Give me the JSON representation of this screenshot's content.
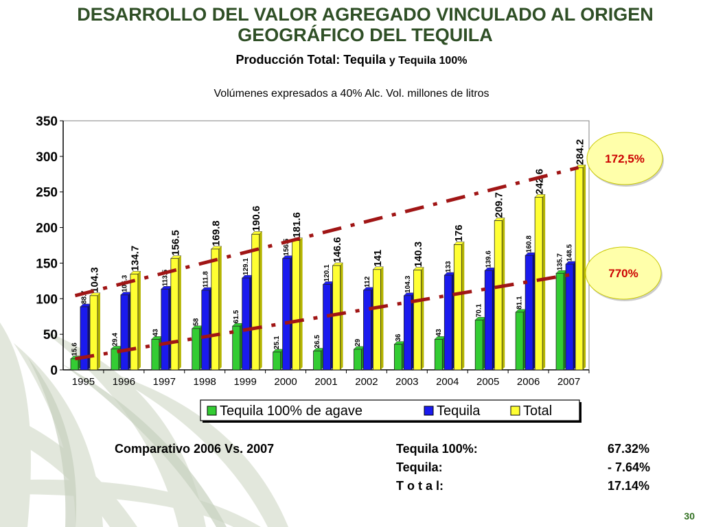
{
  "title": "DESARROLLO DEL VALOR AGREGADO VINCULADO AL ORIGEN GEOGRÁFICO DEL TEQUILA",
  "subtitle_main": "Producción Total: Tequila",
  "subtitle_small": "y Tequila 100%",
  "units_note": "Volúmenes expresados a 40% Alc. Vol. millones de litros",
  "chart_data": {
    "type": "bar",
    "categories": [
      "1995",
      "1996",
      "1997",
      "1998",
      "1999",
      "2000",
      "2001",
      "2002",
      "2003",
      "2004",
      "2005",
      "2006",
      "2007"
    ],
    "series": [
      {
        "name": "Tequila 100% de agave",
        "color": "#33cc33",
        "values": [
          15.6,
          29.4,
          43,
          58,
          61.5,
          25.1,
          26.5,
          29,
          36,
          43,
          70.1,
          81.1,
          135.7
        ],
        "labels": [
          "15.6",
          "29.4",
          "43",
          "58",
          "61.5",
          "25.1",
          "26.5",
          "29",
          "36",
          "43",
          "70.1",
          "81.1",
          "135.7"
        ]
      },
      {
        "name": "Tequila",
        "color": "#1a1aee",
        "values": [
          88.7,
          105.3,
          113.5,
          111.8,
          129.1,
          156.5,
          120.1,
          112,
          104.3,
          133,
          139.6,
          160.8,
          148.5
        ],
        "labels": [
          "88.7",
          "105.3",
          "113.5",
          "111.8",
          "129.1",
          "156.5",
          "120.1",
          "112",
          "104.3",
          "133",
          "139.6",
          "160.8",
          "148.5"
        ]
      },
      {
        "name": "Total",
        "color": "#ffff33",
        "values": [
          104.3,
          134.7,
          156.5,
          169.8,
          190.6,
          181.6,
          146.6,
          141,
          140.3,
          176,
          209.7,
          242.6,
          284.2
        ],
        "labels": [
          "104.3",
          "134.7",
          "156.5",
          "169.8",
          "190.6",
          "181.6",
          "146.6",
          "141",
          "140.3",
          "176",
          "209.7",
          "242.6",
          "284.2"
        ]
      }
    ],
    "yticks": [
      0,
      50,
      100,
      150,
      200,
      250,
      300,
      350
    ],
    "ylim": [
      0,
      350
    ],
    "legend_position": "bottom",
    "trend_lines": [
      {
        "series": "Total",
        "from": [
          0,
          104.3
        ],
        "to": [
          12,
          284.2
        ],
        "color": "#a01515"
      },
      {
        "series": "Tequila 100% de agave",
        "from": [
          0,
          15.6
        ],
        "to": [
          12,
          135.7
        ],
        "color": "#a01515"
      }
    ],
    "callouts": [
      "172,5%",
      "770%"
    ]
  },
  "comparison": {
    "heading": "Comparativo 2006 Vs. 2007",
    "rows": [
      {
        "label": "Tequila 100%:",
        "value": "67.32%"
      },
      {
        "label": "Tequila:",
        "value": "- 7.64%"
      },
      {
        "label": "T o t a l:",
        "value": "17.14%"
      }
    ]
  },
  "page_number": "30"
}
